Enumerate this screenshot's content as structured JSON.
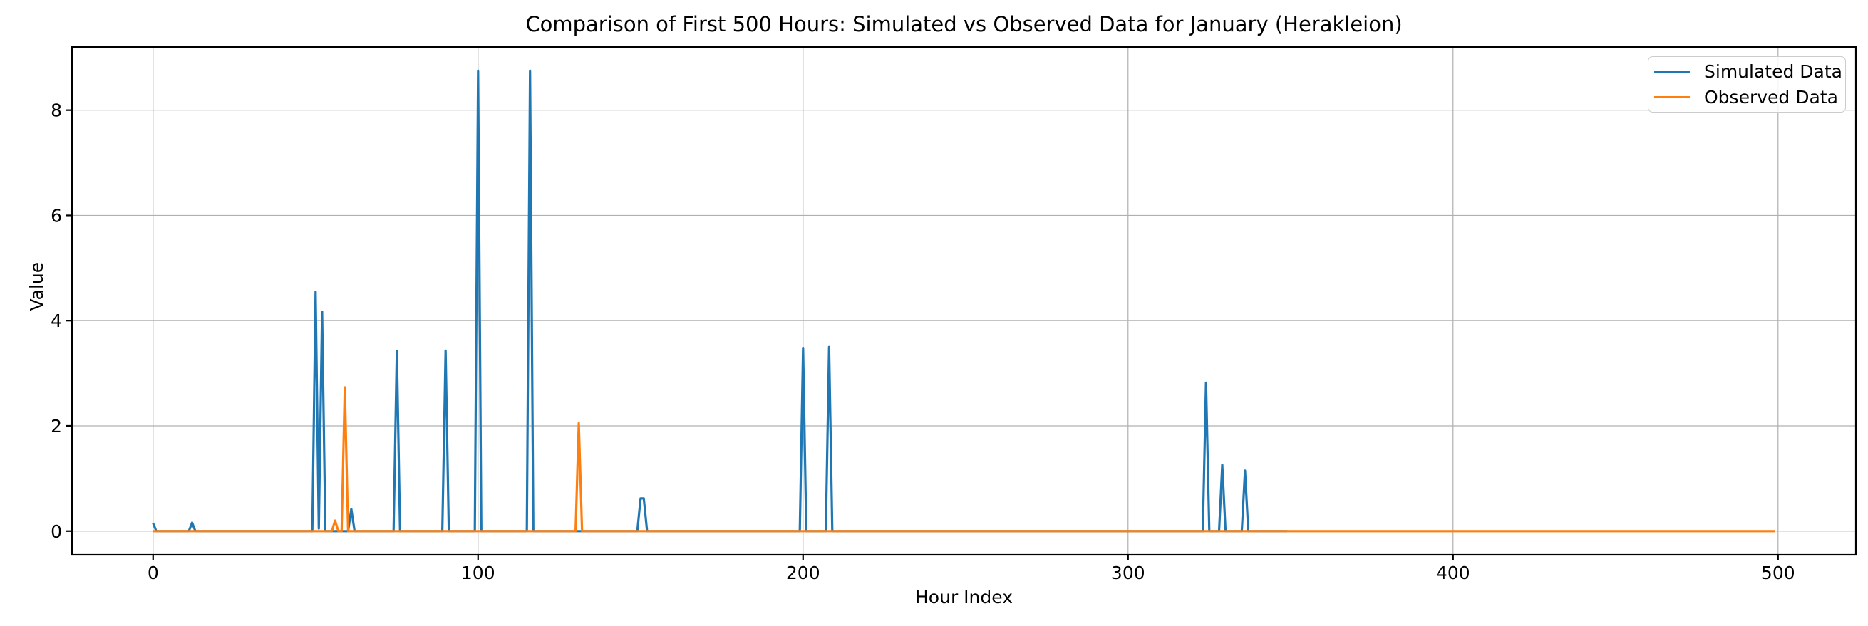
{
  "figure": {
    "background_color": "#ffffff",
    "grid_color": "#b0b0b0",
    "spine_color": "#000000",
    "text_color": "#000000"
  },
  "legend": {
    "position": "upper right",
    "entries": [
      {
        "label": "Simulated Data",
        "color": "#1f77b4"
      },
      {
        "label": "Observed Data",
        "color": "#ff7f0e"
      }
    ]
  },
  "chart_data": {
    "type": "line",
    "title": "Comparison of First 500 Hours: Simulated vs Observed Data for January (Herakleion)",
    "xlabel": "Hour Index",
    "ylabel": "Value",
    "xlim": [
      -24.95,
      523.95
    ],
    "ylim": [
      -0.45,
      9.2
    ],
    "x_ticks": [
      0,
      100,
      200,
      300,
      400,
      500
    ],
    "y_ticks": [
      0,
      2,
      4,
      6,
      8
    ],
    "grid": true,
    "legend_position": "upper right",
    "series": [
      {
        "name": "Simulated Data",
        "color": "#1f77b4",
        "baseline": 0,
        "x_range": [
          0,
          349
        ],
        "points": [
          [
            0,
            0.15
          ],
          [
            1,
            0
          ],
          [
            11,
            0
          ],
          [
            12,
            0.16
          ],
          [
            13,
            0
          ],
          [
            49,
            0
          ],
          [
            50,
            4.55
          ],
          [
            51,
            0.05
          ],
          [
            52,
            4.17
          ],
          [
            53,
            0
          ],
          [
            60,
            0
          ],
          [
            61,
            0.42
          ],
          [
            62,
            0
          ],
          [
            74,
            0
          ],
          [
            75,
            3.42
          ],
          [
            76,
            0
          ],
          [
            89,
            0
          ],
          [
            90,
            3.43
          ],
          [
            91,
            0
          ],
          [
            99,
            0
          ],
          [
            100,
            8.75
          ],
          [
            101,
            0
          ],
          [
            115,
            0
          ],
          [
            116,
            8.75
          ],
          [
            117,
            0
          ],
          [
            149,
            0
          ],
          [
            150,
            0.62
          ],
          [
            151,
            0.62
          ],
          [
            152,
            0
          ],
          [
            199,
            0
          ],
          [
            200,
            3.48
          ],
          [
            201,
            0
          ],
          [
            207,
            0
          ],
          [
            208,
            3.5
          ],
          [
            209,
            0
          ],
          [
            323,
            0
          ],
          [
            324,
            2.82
          ],
          [
            325,
            0
          ],
          [
            328,
            0
          ],
          [
            329,
            1.26
          ],
          [
            330,
            0
          ],
          [
            335,
            0
          ],
          [
            336,
            1.15
          ],
          [
            337,
            0
          ],
          [
            349,
            0
          ]
        ]
      },
      {
        "name": "Observed Data",
        "color": "#ff7f0e",
        "baseline": 0,
        "x_range": [
          0,
          499
        ],
        "points": [
          [
            0,
            0
          ],
          [
            55,
            0
          ],
          [
            56,
            0.2
          ],
          [
            57,
            0
          ],
          [
            58,
            0
          ],
          [
            59,
            2.73
          ],
          [
            60,
            0
          ],
          [
            130,
            0
          ],
          [
            131,
            2.05
          ],
          [
            132,
            0
          ],
          [
            499,
            0
          ]
        ]
      }
    ]
  }
}
